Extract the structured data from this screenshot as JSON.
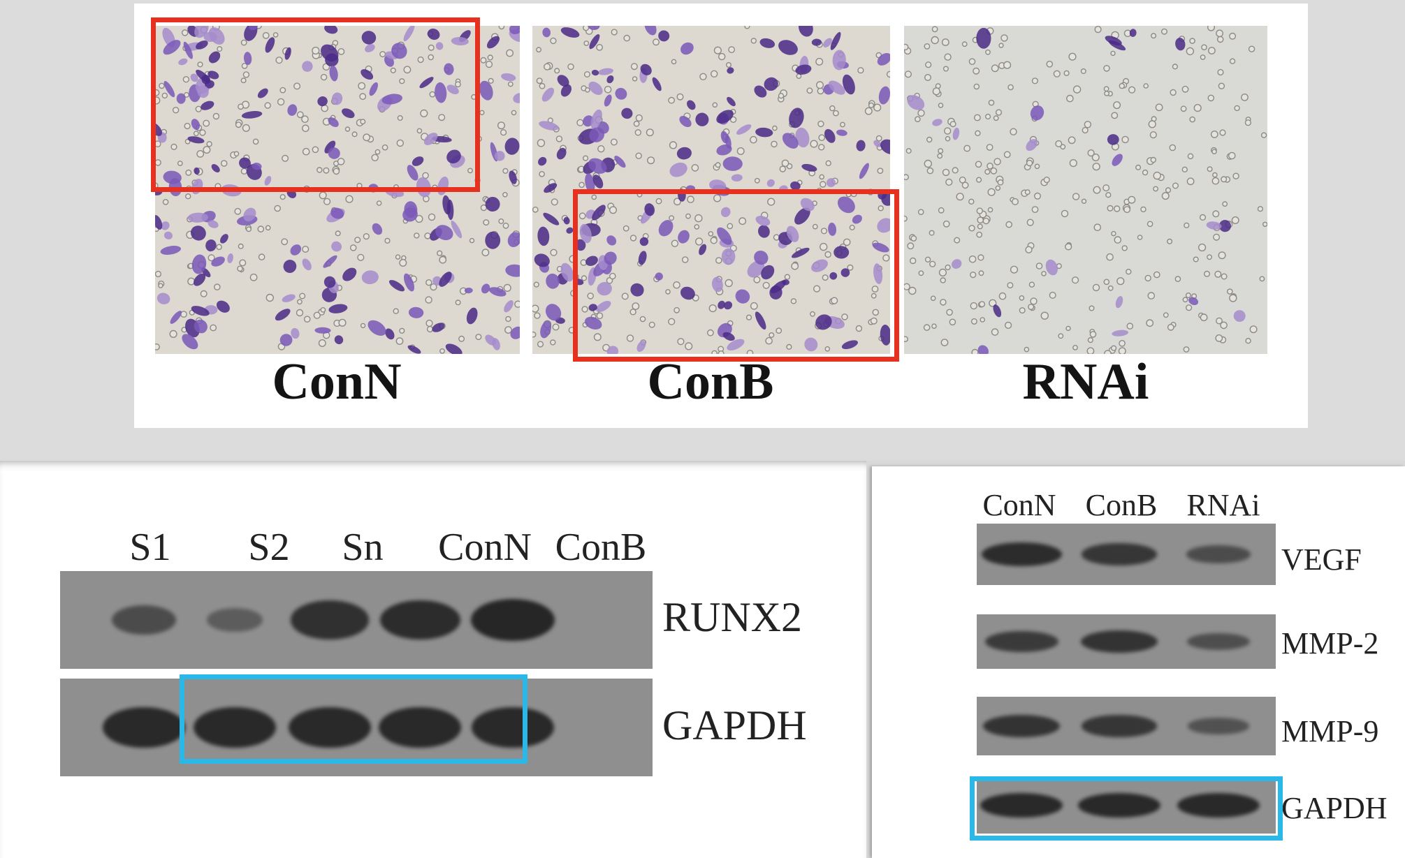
{
  "micrographs": {
    "panels": [
      {
        "label": "ConN",
        "stain": "crystal-violet",
        "cell_density": "high"
      },
      {
        "label": "ConB",
        "stain": "crystal-violet",
        "cell_density": "high"
      },
      {
        "label": "RNAi",
        "stain": "crystal-violet",
        "cell_density": "low"
      }
    ],
    "highlight_color": "#e8301f"
  },
  "western_left": {
    "lanes": [
      "S1",
      "S2",
      "Sn",
      "ConN",
      "ConB"
    ],
    "targets": [
      {
        "name": "RUNX2",
        "intensity": [
          0.45,
          0.2,
          0.85,
          0.9,
          1.0
        ]
      },
      {
        "name": "GAPDH",
        "intensity": [
          0.95,
          0.95,
          0.95,
          0.95,
          0.95
        ]
      }
    ]
  },
  "western_right": {
    "lanes": [
      "ConN",
      "ConB",
      "RNAi"
    ],
    "targets": [
      {
        "name": "VEGF",
        "intensity": [
          0.9,
          0.75,
          0.45
        ]
      },
      {
        "name": "MMP-2",
        "intensity": [
          0.7,
          0.8,
          0.4
        ]
      },
      {
        "name": "MMP-9",
        "intensity": [
          0.8,
          0.75,
          0.35
        ]
      },
      {
        "name": "GAPDH",
        "intensity": [
          0.95,
          0.95,
          0.95
        ]
      }
    ]
  },
  "highlight_color_blue": "#29b8e8"
}
